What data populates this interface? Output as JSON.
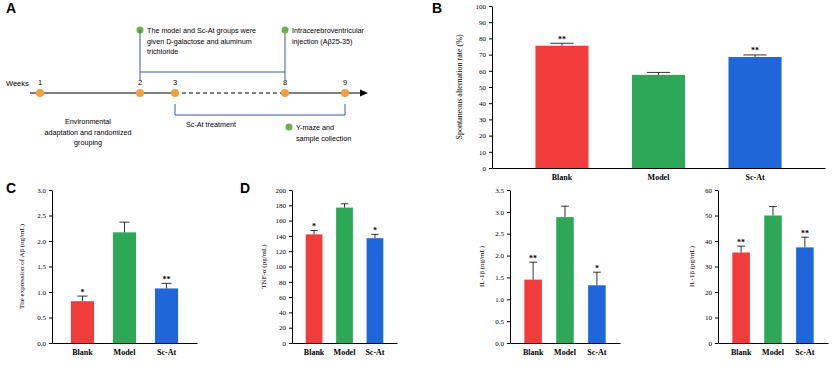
{
  "panel_labels": [
    "A",
    "B",
    "C",
    "D"
  ],
  "timeline": {
    "axis_label": "Weeks",
    "weeks": [
      1,
      2,
      3,
      8,
      9
    ],
    "events": [
      {
        "lines": [
          "Environmental",
          "adaptation and randomized",
          "grouping"
        ]
      },
      {
        "lines": [
          "The model and Sc-At groups were",
          "given D-galactose and aluminum",
          "trichloride"
        ]
      },
      {
        "lines": [
          "Intracerebroventricular",
          "injection (Aβ25-35)"
        ]
      },
      {
        "lines": [
          "Sc-At treatment"
        ]
      },
      {
        "lines": [
          "Y-maze and",
          "sample collection"
        ]
      }
    ]
  },
  "chart_data": [
    {
      "type": "bar",
      "y_label": "Spontaneous alternation rate (%)",
      "categories": [
        "Blank",
        "Model",
        "Sc-At"
      ],
      "values": [
        75.5,
        57.5,
        68.5
      ],
      "errors": [
        1.5,
        1.5,
        1.3
      ],
      "colors": [
        "#f23c3c",
        "#2ca857",
        "#1f66d8"
      ],
      "annotations": [
        "**",
        null,
        "**"
      ],
      "ylim": [
        0,
        100
      ],
      "yticks": [
        0,
        10,
        20,
        30,
        40,
        50,
        60,
        70,
        80,
        90,
        100
      ]
    },
    {
      "type": "bar",
      "y_label": "The expression of Aβ (ng/mL)",
      "categories": [
        "Blank",
        "Model",
        "Sc-At"
      ],
      "values": [
        0.82,
        2.17,
        1.07
      ],
      "errors": [
        0.1,
        0.2,
        0.1
      ],
      "colors": [
        "#f23c3c",
        "#2ca857",
        "#1f66d8"
      ],
      "annotations": [
        "*",
        null,
        "**"
      ],
      "ylim": [
        0,
        3
      ],
      "yticks": [
        {
          "value": 0,
          "label": "0.0"
        },
        0.5,
        {
          "value": 1,
          "label": "1.0"
        },
        1.5,
        {
          "value": 2,
          "label": "2.0"
        },
        2.5,
        {
          "value": 3,
          "label": "3.0"
        }
      ]
    },
    {
      "type": "bar",
      "y_label": "TNF-α (pg/mL)",
      "categories": [
        "Blank",
        "Model",
        "Sc-At"
      ],
      "values": [
        142,
        177,
        137
      ],
      "errors": [
        5,
        5,
        5
      ],
      "colors": [
        "#f23c3c",
        "#2ca857",
        "#1f66d8"
      ],
      "annotations": [
        "*",
        null,
        "*"
      ],
      "ylim": [
        0,
        200
      ],
      "yticks": [
        0,
        20,
        40,
        60,
        80,
        100,
        120,
        140,
        160,
        180,
        200
      ]
    },
    {
      "type": "bar",
      "y_label": "IL-1β (ng/mL)",
      "categories": [
        "Blank",
        "Model",
        "Sc-At"
      ],
      "values": [
        1.45,
        2.88,
        1.32
      ],
      "errors": [
        0.4,
        0.25,
        0.3
      ],
      "colors": [
        "#f23c3c",
        "#2ca857",
        "#1f66d8"
      ],
      "annotations": [
        "**",
        null,
        "*"
      ],
      "ylim": [
        0,
        3.5
      ],
      "yticks": [
        {
          "value": 0,
          "label": "0.0"
        },
        0.5,
        {
          "value": 1,
          "label": "1.0"
        },
        1.5,
        {
          "value": 2,
          "label": "2.0"
        },
        2.5,
        {
          "value": 3,
          "label": "3.0"
        },
        3.5
      ]
    },
    {
      "type": "bar",
      "y_label": "IL-1β (pg/mL)",
      "categories": [
        "Blank",
        "Model",
        "Sc-At"
      ],
      "values": [
        35.5,
        50,
        37.5
      ],
      "errors": [
        2.5,
        3.5,
        4
      ],
      "colors": [
        "#f23c3c",
        "#2ca857",
        "#1f66d8"
      ],
      "annotations": [
        "**",
        null,
        "**"
      ],
      "ylim": [
        0,
        60
      ],
      "yticks": [
        0,
        10,
        20,
        30,
        40,
        50,
        60
      ]
    }
  ]
}
